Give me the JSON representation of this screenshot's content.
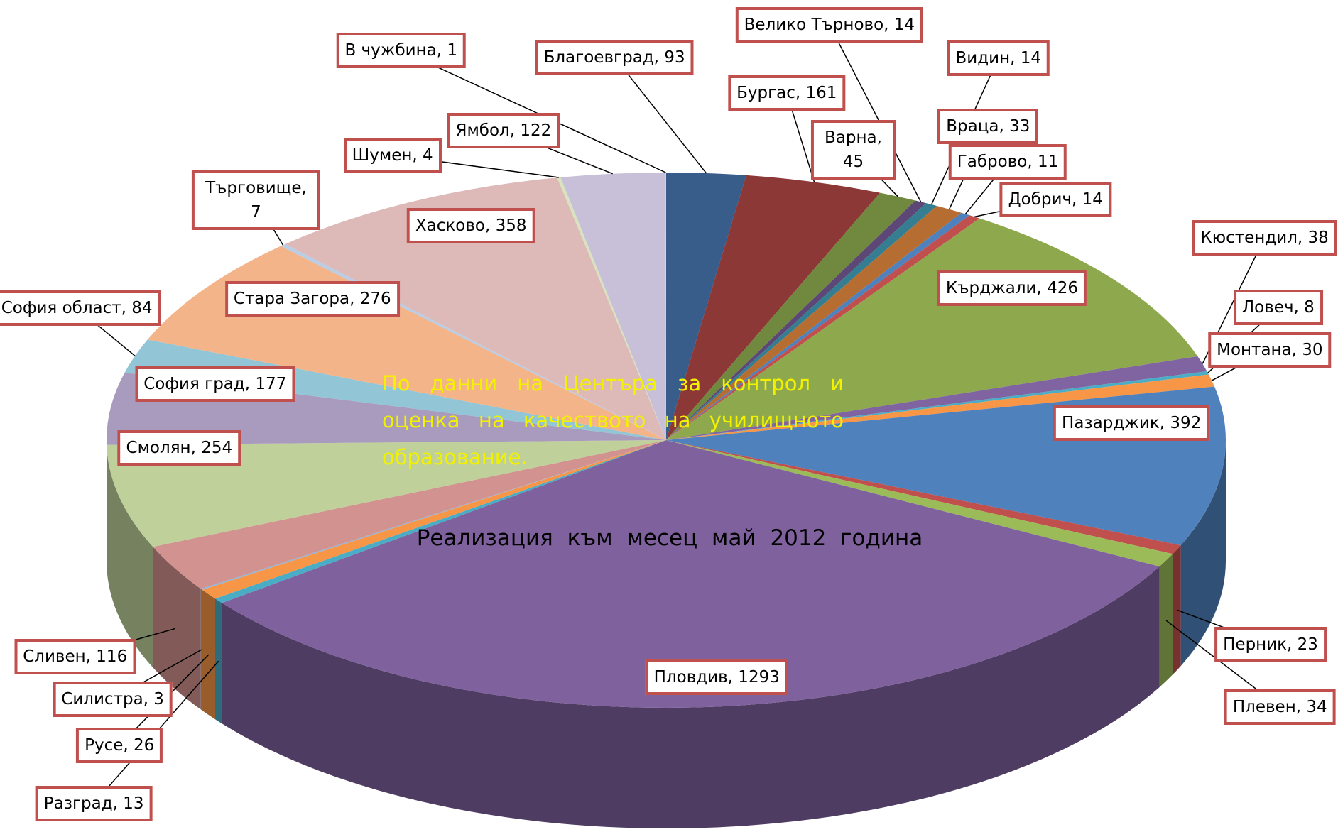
{
  "chart_data": {
    "type": "pie3d",
    "annotations": [
      "По данни на Центъра за контрол и оценка на качеството на училищното образование.",
      "Реализация към месец май 2012 година"
    ],
    "values": [
      93,
      161,
      45,
      14,
      14,
      33,
      11,
      14,
      426,
      38,
      8,
      30,
      392,
      23,
      34,
      1293,
      13,
      26,
      3,
      116,
      254,
      177,
      84,
      276,
      7,
      358,
      4,
      122,
      1
    ],
    "value_labels": [
      "Благоевград, 93",
      "Бургас, 161",
      "Варна, 45",
      "Велико Търново, 14",
      "Видин, 14",
      "Враца, 33",
      "Габрово, 11",
      "Добрич, 14",
      "Кърджали, 426",
      "Кюстендил, 38",
      "Ловеч, 8",
      "Монтана, 30",
      "Пазарджик, 392",
      "Перник, 23",
      "Плевен, 34",
      "Пловдив, 1293",
      "Разград, 13",
      "Русе, 26",
      "Силистра, 3",
      "Сливен, 116",
      "Смолян, 254",
      "София град, 177",
      "София област, 84",
      "Стара Загора, 276",
      "Търговище, 7",
      "Хасково, 358",
      "Шумен, 4",
      "Ямбол, 122",
      "В чужбина, 1"
    ],
    "colors": [
      "#385d8a",
      "#8c3836",
      "#71893f",
      "#5c4776",
      "#357d91",
      "#b66d31",
      "#4f81bd",
      "#c0504d",
      "#8ea84e",
      "#8064a2",
      "#4bacc6",
      "#f79646",
      "#4f81bd",
      "#c0504d",
      "#9bbb59",
      "#7f619e",
      "#4bacc6",
      "#f79646",
      "#95b3d7",
      "#d19290",
      "#bfd09a",
      "#a99bbd",
      "#92c5d6",
      "#f4b48a",
      "#b9cde5",
      "#ddb9b8",
      "#d7e4bd",
      "#c8c0d8",
      "#b7dee8"
    ]
  }
}
